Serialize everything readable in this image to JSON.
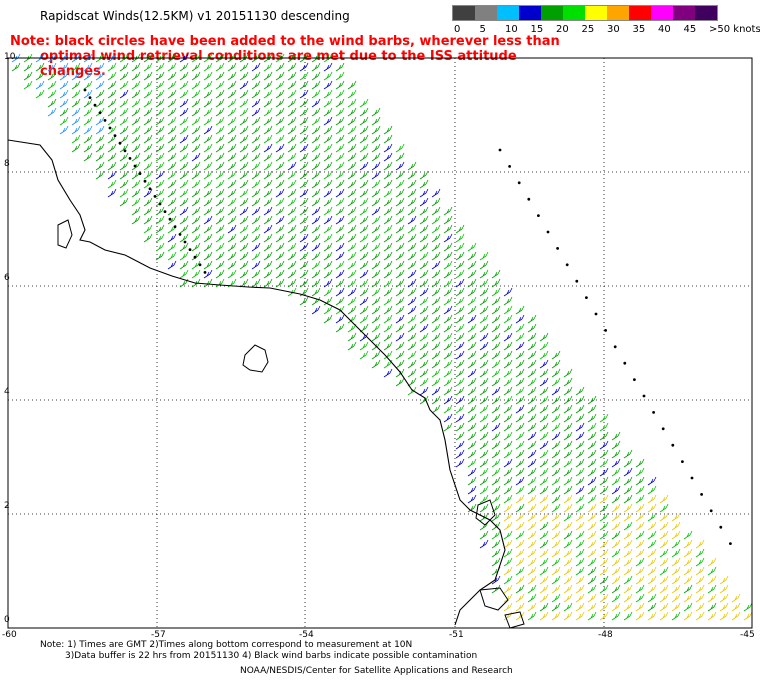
{
  "title": "Rapidscat Winds(12.5KM) v1 20151130 descending",
  "note": {
    "line1": "Note: black circles have been added to the wind barbs, wherever less than",
    "line2": "optimal wind retrieval conditions are met due to the ISS attitude changes."
  },
  "legend": {
    "labels": [
      "0",
      "5",
      "10",
      "15",
      "20",
      "25",
      "30",
      "35",
      "40",
      "45",
      ">50 knots"
    ],
    "colors": [
      "#404040",
      "#808080",
      "#00bfff",
      "#0000cd",
      "#00a000",
      "#00e000",
      "#ffff00",
      "#ffa500",
      "#ff0000",
      "#ff00ff",
      "#800080",
      "#400060"
    ]
  },
  "axes": {
    "y_ticks": [
      "10",
      "8",
      "6",
      "4",
      "2",
      "0"
    ],
    "x_ticks": [
      "-60",
      "-57",
      "-54",
      "-51",
      "-48",
      "-45"
    ]
  },
  "footer": {
    "line1": "Note: 1) Times are GMT 2)Times along bottom correspond to measurement at 10N",
    "line2": "3)Data buffer is 22 hrs from 20151130 4) Black wind barbs indicate possible contamination",
    "line3": "NOAA/NESDIS/Center for Satellite Applications and Research"
  }
}
